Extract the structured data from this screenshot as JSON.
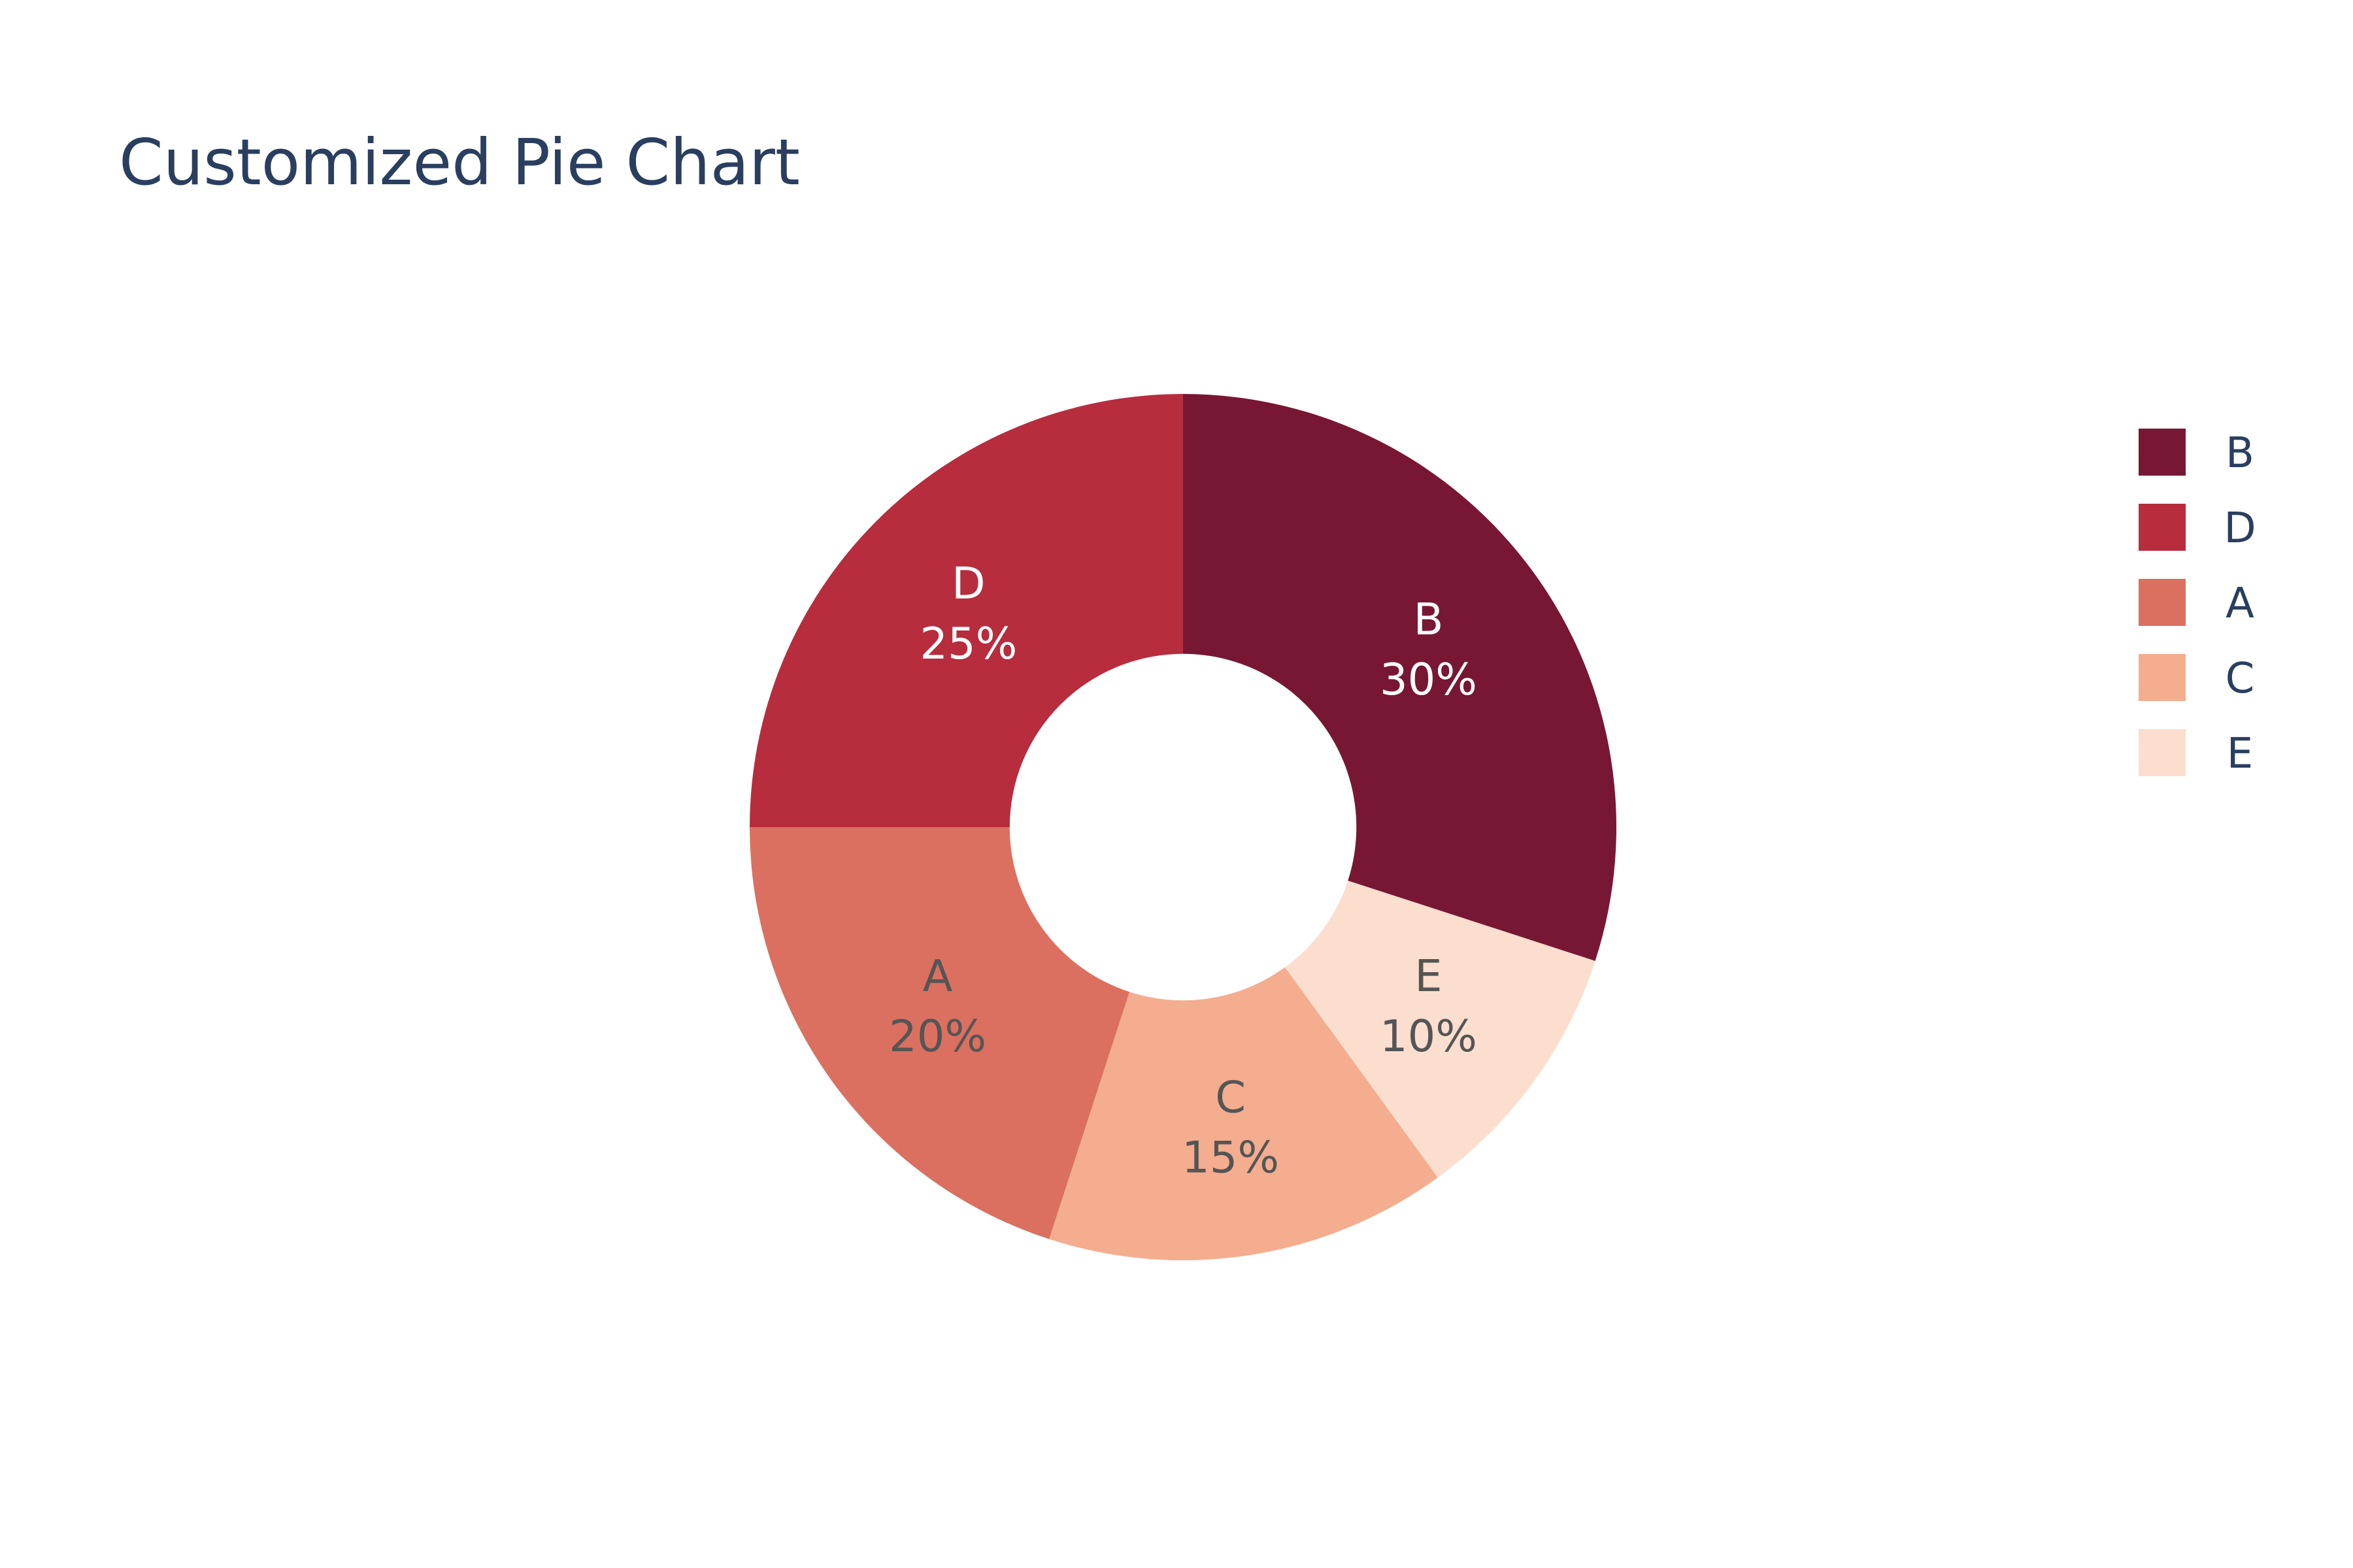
{
  "chart_data": {
    "type": "pie",
    "title": "Customized Pie Chart",
    "hole": 0.4,
    "direction": "clockwise",
    "start": "12 o'clock",
    "legend": "right",
    "slices": [
      {
        "label": "B",
        "value": 30,
        "text": "30%",
        "color": "#781733",
        "text_color": "#ffffff"
      },
      {
        "label": "E",
        "value": 10,
        "text": "10%",
        "color": "#fcdecf",
        "text_color": "#555555"
      },
      {
        "label": "C",
        "value": 15,
        "text": "15%",
        "color": "#f4ad8f",
        "text_color": "#555555"
      },
      {
        "label": "A",
        "value": 20,
        "text": "20%",
        "color": "#db7060",
        "text_color": "#555555"
      },
      {
        "label": "D",
        "value": 25,
        "text": "25%",
        "color": "#b72d3e",
        "text_color": "#ffffff"
      }
    ],
    "legend_order": [
      "B",
      "D",
      "A",
      "C",
      "E"
    ]
  }
}
